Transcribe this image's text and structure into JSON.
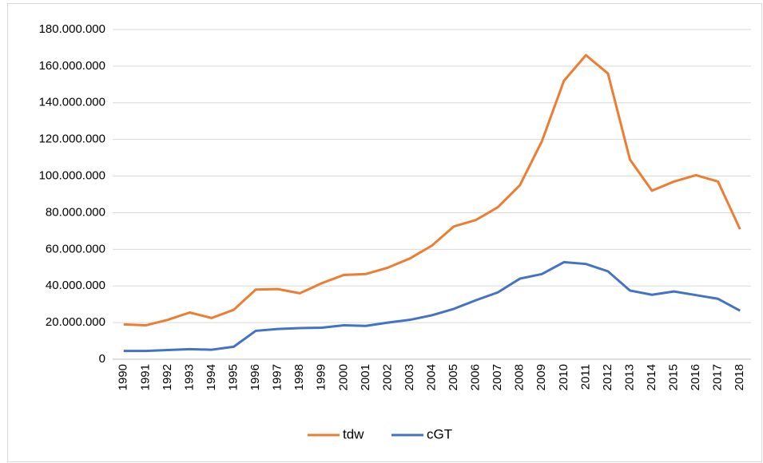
{
  "chart_data": {
    "type": "line",
    "categories": [
      "1990",
      "1991",
      "1992",
      "1993",
      "1994",
      "1995",
      "1996",
      "1997",
      "1998",
      "1999",
      "2000",
      "2001",
      "2002",
      "2003",
      "2004",
      "2005",
      "2006",
      "2007",
      "2008",
      "2009",
      "2010",
      "2011",
      "2012",
      "2013",
      "2014",
      "2015",
      "2016",
      "2017",
      "2018"
    ],
    "series": [
      {
        "name": "tdw",
        "color": "#ED7D31",
        "values": [
          19000000,
          18500000,
          21500000,
          25500000,
          22500000,
          27000000,
          38000000,
          38300000,
          36000000,
          41500000,
          46000000,
          46500000,
          50000000,
          55000000,
          62000000,
          72500000,
          76000000,
          83000000,
          95000000,
          119000000,
          152000000,
          166000000,
          156000000,
          109000000,
          92000000,
          97000000,
          100500000,
          97000000,
          71000000
        ]
      },
      {
        "name": "cGT",
        "color": "#4472C4",
        "values": [
          4500000,
          4500000,
          5000000,
          5500000,
          5200000,
          6800000,
          15500000,
          16500000,
          17000000,
          17200000,
          18500000,
          18200000,
          20000000,
          21500000,
          24000000,
          27500000,
          32200000,
          36500000,
          44000000,
          46500000,
          53000000,
          52000000,
          48000000,
          37500000,
          35200000,
          37000000,
          35000000,
          33000000,
          26500000
        ]
      }
    ],
    "ylim": [
      0,
      180000000
    ],
    "yticks": [
      0,
      {
        "value": 20000000,
        "label": "20.000.000"
      },
      {
        "value": 40000000,
        "label": "40.000.000"
      },
      {
        "value": 60000000,
        "label": "60.000.000"
      },
      {
        "value": 80000000,
        "label": "80.000.000"
      },
      {
        "value": 100000000,
        "label": "100.000.000"
      },
      {
        "value": 120000000,
        "label": "120.000.000"
      },
      {
        "value": 140000000,
        "label": "140.000.000"
      },
      {
        "value": 160000000,
        "label": "160.000.000"
      },
      {
        "value": 180000000,
        "label": "180.000.000"
      }
    ],
    "grid": true,
    "legend": "bottom"
  }
}
